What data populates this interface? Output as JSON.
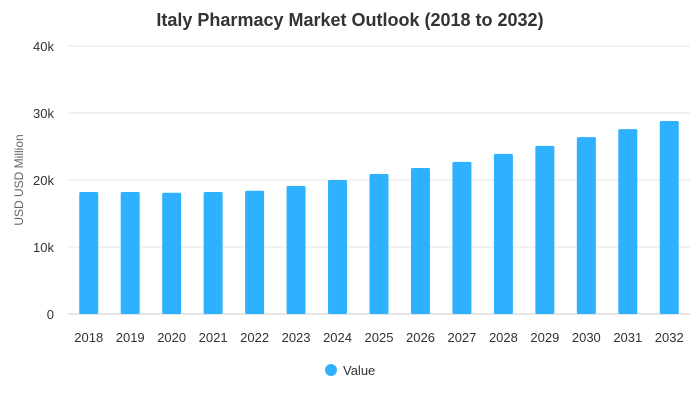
{
  "chart_data": {
    "type": "bar",
    "title": "Italy Pharmacy Market Outlook (2018 to 2032)",
    "xlabel": "",
    "ylabel": "USD USD Million",
    "categories": [
      "2018",
      "2019",
      "2020",
      "2021",
      "2022",
      "2023",
      "2024",
      "2025",
      "2026",
      "2027",
      "2028",
      "2029",
      "2030",
      "2031",
      "2032"
    ],
    "series": [
      {
        "name": "Value",
        "color": "#2eb1ff",
        "values": [
          18200,
          18200,
          18100,
          18200,
          18400,
          19100,
          20000,
          20900,
          21800,
          22700,
          23900,
          25100,
          26400,
          27600,
          28800
        ]
      }
    ],
    "ylim": [
      0,
      40000
    ],
    "yticks": [
      0,
      10000,
      20000,
      30000,
      40000
    ],
    "ytick_labels": [
      "0",
      "10k",
      "20k",
      "30k",
      "40k"
    ],
    "grid": true,
    "legend": {
      "position": "bottom-center",
      "entries": [
        "Value"
      ]
    }
  }
}
